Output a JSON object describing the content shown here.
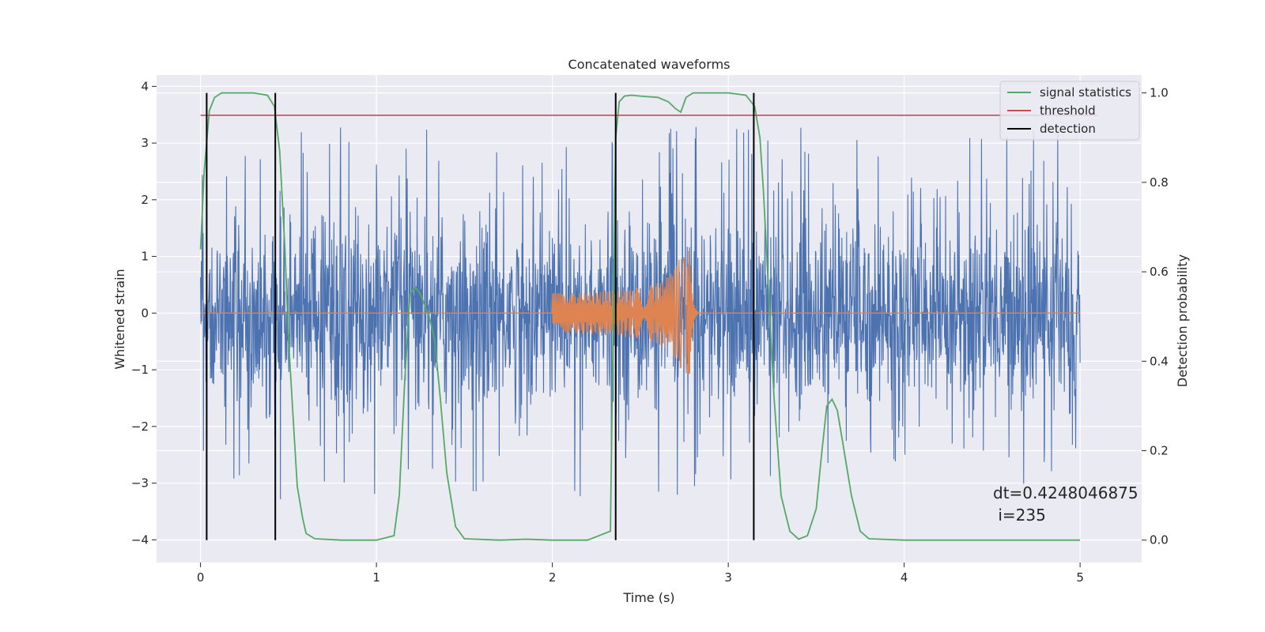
{
  "chart_data": {
    "type": "line",
    "title": "Concatenated waveforms",
    "xlabel": "Time (s)",
    "ylabel": "Whitened strain",
    "ylabel_right": "Detection probability",
    "xlim": [
      -0.25,
      5.35
    ],
    "ylim": [
      -4.4,
      4.2
    ],
    "ylim_right": [
      -0.05,
      1.04
    ],
    "xticks": [
      0,
      1,
      2,
      3,
      4,
      5
    ],
    "yticks": [
      -4,
      -3,
      -2,
      -1,
      0,
      1,
      2,
      3,
      4
    ],
    "yticks_right": [
      0.0,
      0.2,
      0.4,
      0.6,
      0.8,
      1.0
    ],
    "xtick_labels": [
      "0",
      "1",
      "2",
      "3",
      "4",
      "5"
    ],
    "ytick_labels": [
      "−4",
      "−3",
      "−2",
      "−1",
      "0",
      "1",
      "2",
      "3",
      "4"
    ],
    "ytick_right_labels": [
      "0.0",
      "0.2",
      "0.4",
      "0.6",
      "0.8",
      "1.0"
    ],
    "grid": true,
    "legend_position": "top-right",
    "colors": {
      "strain": "#4c72b0",
      "template": "#dd8452",
      "signal_statistics": "#55a868",
      "threshold": "#c44e52",
      "detection": "#000000",
      "background": "#eaeaf2",
      "grid": "#ffffff"
    },
    "series": [
      {
        "name": "signal statistics",
        "axis": "right",
        "x": [
          0.0,
          0.02,
          0.05,
          0.08,
          0.12,
          0.2,
          0.3,
          0.38,
          0.42,
          0.45,
          0.48,
          0.5,
          0.53,
          0.55,
          0.58,
          0.6,
          0.65,
          0.8,
          1.0,
          1.1,
          1.13,
          1.16,
          1.19,
          1.22,
          1.25,
          1.3,
          1.33,
          1.36,
          1.4,
          1.45,
          1.5,
          1.7,
          1.85,
          2.0,
          2.2,
          2.33,
          2.36,
          2.38,
          2.41,
          2.45,
          2.5,
          2.6,
          2.66,
          2.7,
          2.73,
          2.76,
          2.8,
          2.9,
          3.0,
          3.1,
          3.15,
          3.18,
          3.2,
          3.23,
          3.26,
          3.3,
          3.35,
          3.4,
          3.45,
          3.5,
          3.53,
          3.56,
          3.59,
          3.62,
          3.65,
          3.7,
          3.75,
          3.8,
          4.0,
          4.5,
          5.0
        ],
        "y": [
          0.65,
          0.82,
          0.96,
          0.99,
          1.0,
          1.0,
          1.0,
          0.995,
          0.97,
          0.87,
          0.65,
          0.45,
          0.25,
          0.12,
          0.05,
          0.015,
          0.003,
          0.0,
          0.0,
          0.01,
          0.1,
          0.35,
          0.55,
          0.565,
          0.55,
          0.5,
          0.45,
          0.33,
          0.15,
          0.03,
          0.003,
          0.0,
          0.002,
          0.0,
          0.0,
          0.02,
          0.9,
          0.98,
          0.993,
          0.995,
          0.993,
          0.99,
          0.98,
          0.965,
          0.957,
          0.99,
          1.0,
          1.0,
          1.0,
          0.995,
          0.97,
          0.9,
          0.78,
          0.55,
          0.32,
          0.1,
          0.02,
          0.002,
          0.01,
          0.07,
          0.19,
          0.3,
          0.315,
          0.29,
          0.22,
          0.1,
          0.02,
          0.003,
          0.0,
          0.0,
          0.0
        ]
      },
      {
        "name": "threshold",
        "axis": "right",
        "x": [
          0.0,
          5.1
        ],
        "y": [
          0.95,
          0.95
        ]
      },
      {
        "name": "detection",
        "axis": "right",
        "x": [
          0.035,
          0.425,
          2.36,
          3.145
        ]
      }
    ],
    "annotations": [
      "dt=0.4248046875\n i=235"
    ]
  }
}
